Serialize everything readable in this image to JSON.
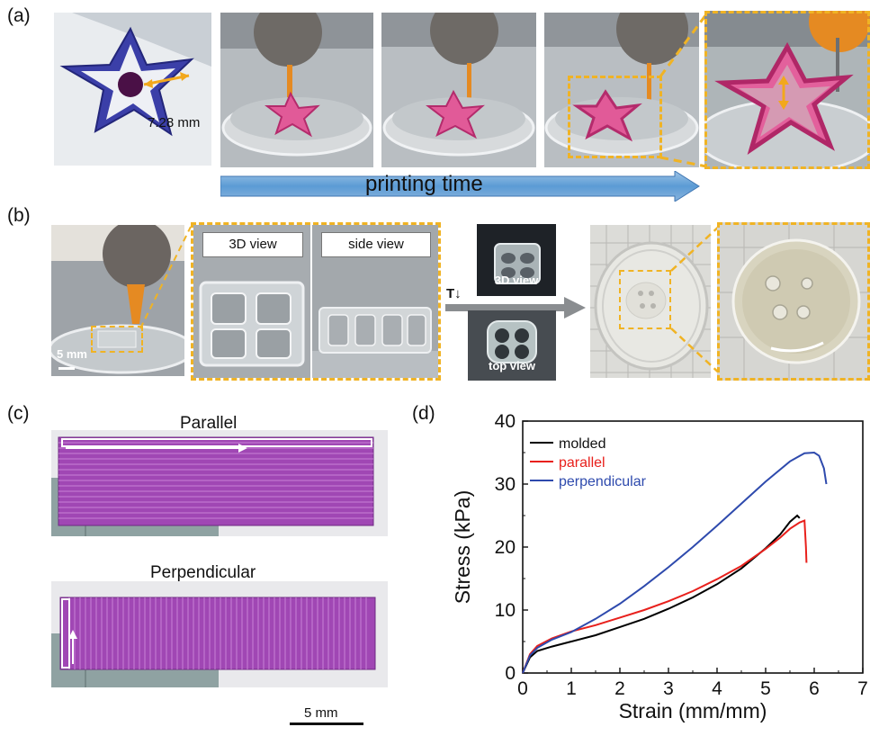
{
  "panels": {
    "a": {
      "label": "(a)",
      "dimension_label": "7.28 mm",
      "timeline_label": "printing time"
    },
    "b": {
      "label": "(b)",
      "scale_label": "5 mm",
      "tag_3d_view": "3D view",
      "tag_side_view": "side view",
      "temp_label": "T↓",
      "small_3d_view": "3D view",
      "small_top_view": "top view"
    },
    "c": {
      "label": "(c)",
      "parallel_title": "Parallel",
      "perpendicular_title": "Perpendicular",
      "scale_label": "5 mm"
    },
    "d": {
      "label": "(d)"
    }
  },
  "colors": {
    "accent_dashed": "#f0b324",
    "magenta_fill": "#a047b4",
    "gray_base": "#8fa2a2",
    "molded": "#000000",
    "parallel": "#e8201c",
    "perpendicular": "#2e4aad"
  },
  "chart_data": {
    "type": "line",
    "xlabel": "Strain (mm/mm)",
    "ylabel": "Stress (kPa)",
    "xlim": [
      0,
      7
    ],
    "ylim": [
      0,
      40
    ],
    "xticks": [
      "0",
      "1",
      "2",
      "3",
      "4",
      "5",
      "6",
      "7"
    ],
    "yticks": [
      "0",
      "10",
      "20",
      "30",
      "40"
    ],
    "legend_position": "top-left",
    "series": [
      {
        "name": "molded",
        "color": "#000000",
        "x": [
          0,
          0.15,
          0.3,
          0.6,
          1.0,
          1.5,
          2.0,
          2.5,
          3.0,
          3.5,
          4.0,
          4.5,
          5.0,
          5.3,
          5.5,
          5.65,
          5.7
        ],
        "y": [
          0,
          2.5,
          3.5,
          4.2,
          5.0,
          6.0,
          7.3,
          8.6,
          10.2,
          12.0,
          14.1,
          16.6,
          19.8,
          22.0,
          24.0,
          25.0,
          24.6
        ]
      },
      {
        "name": "parallel",
        "color": "#e8201c",
        "x": [
          0,
          0.15,
          0.3,
          0.6,
          1.0,
          1.5,
          2.0,
          2.5,
          3.0,
          3.5,
          4.0,
          4.5,
          5.0,
          5.3,
          5.5,
          5.7,
          5.8,
          5.83,
          5.84
        ],
        "y": [
          0,
          3.0,
          4.3,
          5.5,
          6.6,
          7.6,
          8.8,
          10.0,
          11.4,
          13.0,
          14.9,
          17.0,
          19.7,
          21.5,
          22.9,
          23.9,
          24.2,
          20.0,
          17.5
        ]
      },
      {
        "name": "perpendicular",
        "color": "#2e4aad",
        "x": [
          0,
          0.15,
          0.3,
          0.6,
          1.0,
          1.5,
          2.0,
          2.5,
          3.0,
          3.5,
          4.0,
          4.5,
          5.0,
          5.5,
          5.8,
          6.0,
          6.1,
          6.2,
          6.25
        ],
        "y": [
          0,
          2.8,
          4.0,
          5.3,
          6.5,
          8.6,
          11.0,
          13.8,
          16.8,
          20.0,
          23.4,
          26.9,
          30.4,
          33.6,
          34.9,
          35.0,
          34.5,
          32.5,
          30.0
        ]
      }
    ]
  }
}
